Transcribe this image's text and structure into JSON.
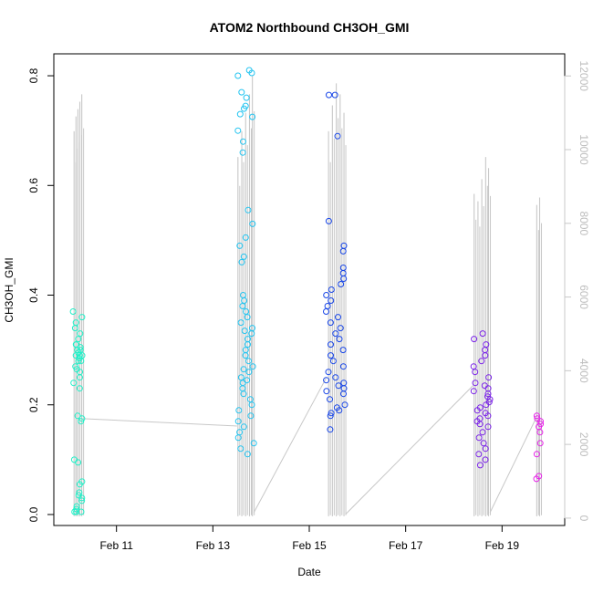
{
  "chart_data": {
    "type": "scatter",
    "title": "ATOM2 Northbound CH3OH_GMI",
    "xlabel": "Date",
    "ylabel": "CH3OH_GMI",
    "x_ticks": [
      "Feb 11",
      "Feb 13",
      "Feb 15",
      "Feb 17",
      "Feb 19"
    ],
    "x_tick_days": [
      11,
      13,
      15,
      17,
      19
    ],
    "xlim_days": [
      9.7,
      20.3
    ],
    "y_ticks": [
      "0.0",
      "0.2",
      "0.4",
      "0.6",
      "0.8"
    ],
    "ylim": [
      -0.02,
      0.84
    ],
    "y2_ticks": [
      "0",
      "2000",
      "4000",
      "6000",
      "8000",
      "10000",
      "12000"
    ],
    "y2lim": [
      -200,
      12600
    ],
    "grid": false,
    "legend": "none",
    "point_colors": [
      "#22f0c8",
      "#22c4f0",
      "#1846e8",
      "#7a22e8",
      "#e622e8"
    ],
    "altitude_color": "#c8c8c8",
    "series": [
      {
        "flight_date": "Feb 10",
        "color": "#22f0c8",
        "x_range": [
          10.1,
          10.3
        ],
        "ch3oh": [
          0.37,
          0.36,
          0.35,
          0.34,
          0.33,
          0.32,
          0.31,
          0.305,
          0.3,
          0.295,
          0.29,
          0.285,
          0.28,
          0.27,
          0.265,
          0.26,
          0.25,
          0.24,
          0.23,
          0.18,
          0.175,
          0.17,
          0.1,
          0.095,
          0.06,
          0.055,
          0.04,
          0.035,
          0.03,
          0.025,
          0.015,
          0.01,
          0.005,
          0.005,
          0.005,
          0.31,
          0.3,
          0.29,
          0.29,
          0.28
        ],
        "alt_x": [
          10.12,
          10.16,
          10.2,
          10.24,
          10.28
        ],
        "alt_peak": [
          10500,
          10900,
          11100,
          11300,
          11500
        ]
      },
      {
        "flight_date": "Feb 13",
        "color": "#22c4f0",
        "x_range": [
          13.5,
          13.85
        ],
        "ch3oh": [
          0.81,
          0.805,
          0.8,
          0.77,
          0.76,
          0.745,
          0.74,
          0.73,
          0.725,
          0.7,
          0.68,
          0.66,
          0.555,
          0.53,
          0.505,
          0.49,
          0.47,
          0.46,
          0.4,
          0.39,
          0.38,
          0.37,
          0.36,
          0.35,
          0.34,
          0.335,
          0.33,
          0.32,
          0.31,
          0.3,
          0.29,
          0.28,
          0.27,
          0.265,
          0.26,
          0.25,
          0.245,
          0.24,
          0.23,
          0.22,
          0.21,
          0.2,
          0.19,
          0.18,
          0.17,
          0.16,
          0.15,
          0.14,
          0.13,
          0.12,
          0.11
        ],
        "alt_x": [
          13.52,
          13.6,
          13.68,
          13.76,
          13.82
        ],
        "alt_peak": [
          9800,
          10500,
          11000,
          11500,
          12000
        ]
      },
      {
        "flight_date": "Feb 15",
        "color": "#1846e8",
        "x_range": [
          15.35,
          15.75
        ],
        "ch3oh": [
          0.765,
          0.765,
          0.69,
          0.535,
          0.49,
          0.48,
          0.45,
          0.44,
          0.43,
          0.42,
          0.41,
          0.4,
          0.39,
          0.38,
          0.37,
          0.36,
          0.35,
          0.34,
          0.33,
          0.32,
          0.31,
          0.3,
          0.29,
          0.28,
          0.27,
          0.26,
          0.25,
          0.245,
          0.24,
          0.235,
          0.23,
          0.225,
          0.22,
          0.21,
          0.2,
          0.195,
          0.19,
          0.185,
          0.18,
          0.155
        ],
        "alt_x": [
          15.4,
          15.48,
          15.56,
          15.64,
          15.72
        ],
        "alt_peak": [
          10500,
          11200,
          11800,
          11500,
          11000
        ]
      },
      {
        "flight_date": "Feb 18",
        "color": "#7a22e8",
        "x_range": [
          18.4,
          18.75
        ],
        "ch3oh": [
          0.33,
          0.32,
          0.31,
          0.3,
          0.29,
          0.28,
          0.27,
          0.26,
          0.25,
          0.24,
          0.235,
          0.23,
          0.225,
          0.22,
          0.215,
          0.21,
          0.205,
          0.2,
          0.195,
          0.19,
          0.185,
          0.18,
          0.175,
          0.17,
          0.165,
          0.16,
          0.15,
          0.14,
          0.13,
          0.12,
          0.11,
          0.1,
          0.09
        ],
        "alt_x": [
          18.42,
          18.5,
          18.58,
          18.66,
          18.72
        ],
        "alt_peak": [
          8800,
          8600,
          9200,
          9800,
          9500
        ]
      },
      {
        "flight_date": "Feb 19",
        "color": "#e622e8",
        "x_range": [
          19.7,
          19.8
        ],
        "ch3oh": [
          0.18,
          0.175,
          0.17,
          0.165,
          0.16,
          0.15,
          0.13,
          0.11,
          0.07,
          0.065
        ],
        "alt_x": [
          19.72,
          19.78
        ],
        "alt_peak": [
          8500,
          8700
        ]
      }
    ]
  }
}
